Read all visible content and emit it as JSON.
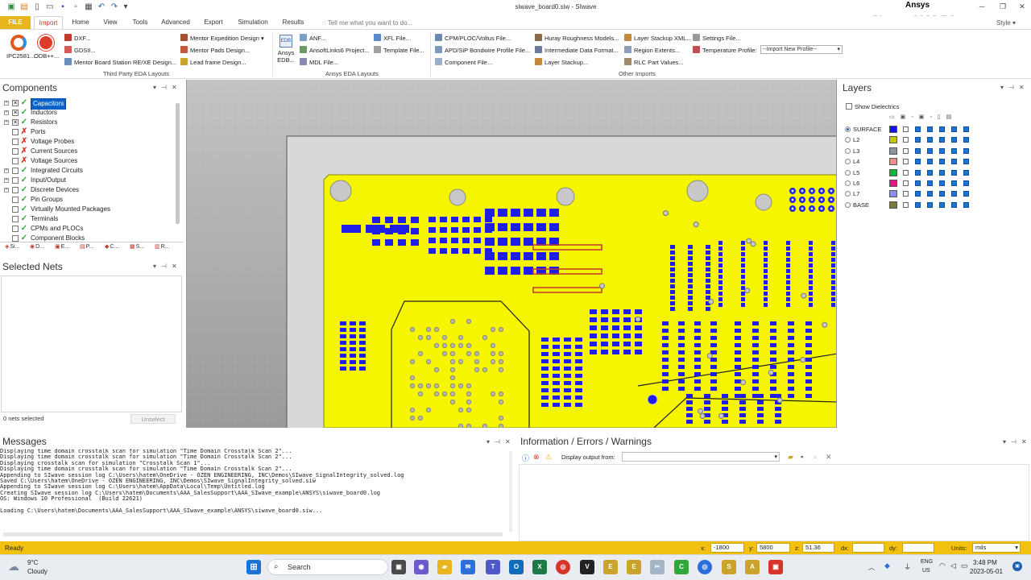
{
  "window": {
    "title": "siwave_board0.siw - SIwave",
    "brand": "Ansys",
    "product": "SIwave 2022 R2"
  },
  "tabs": [
    "FILE",
    "Import",
    "Home",
    "View",
    "Tools",
    "Advanced",
    "Export",
    "Simulation",
    "Results"
  ],
  "tell_me": "Tell me what you want to do...",
  "style_label": "Style",
  "ribbon": {
    "third_party": {
      "big1": "IPC2581...",
      "big2": "ODB++...",
      "small": [
        "DXF...",
        "GDSII...",
        "Mentor Board Station RE/XE Design..."
      ],
      "mentor": [
        "Mentor Expedition Design",
        "Mentor Pads Design...",
        "Lead frame Design..."
      ],
      "label": "Third Party EDA Layouts"
    },
    "ansys": {
      "big": "Ansys EDB...",
      "col1": [
        "ANF...",
        "AnsoftLinks6 Project...",
        "MDL File..."
      ],
      "col2": [
        "XFL File...",
        "Template File..."
      ],
      "label": "Ansys EDA Layouts"
    },
    "other": {
      "col1": [
        "CPM/PLOC/Voltus File...",
        "APD/SiP Bondwire Profile File...",
        "Component File..."
      ],
      "col2": [
        "Huray Roughness Models...",
        "Intermediate Data Format...",
        "Layer Stackup..."
      ],
      "col3": [
        "Layer Stackup XML...",
        "Region Extents...",
        "RLC Part Values..."
      ],
      "col4": [
        "Settings File...",
        "Temperature Profile:"
      ],
      "temp_select": "--Import New Profile--",
      "label": "Other Imports"
    }
  },
  "components": {
    "title": "Components",
    "items": [
      {
        "label": "Capacitors",
        "expand": true,
        "checked": true,
        "status": "ok",
        "selected": true
      },
      {
        "label": "Inductors",
        "expand": true,
        "checked": true,
        "status": "ok"
      },
      {
        "label": "Resistors",
        "expand": true,
        "checked": true,
        "status": "ok"
      },
      {
        "label": "Ports",
        "expand": false,
        "checked": false,
        "status": "x"
      },
      {
        "label": "Voltage Probes",
        "expand": false,
        "checked": false,
        "status": "x"
      },
      {
        "label": "Current Sources",
        "expand": false,
        "checked": false,
        "status": "x"
      },
      {
        "label": "Voltage Sources",
        "expand": false,
        "checked": false,
        "status": "x"
      },
      {
        "label": "Integrated Circuits",
        "expand": true,
        "checked": false,
        "status": "ok"
      },
      {
        "label": "Input/Output",
        "expand": true,
        "checked": false,
        "status": "ok"
      },
      {
        "label": "Discrete Devices",
        "expand": true,
        "checked": false,
        "status": "ok"
      },
      {
        "label": "Pin Groups",
        "expand": false,
        "checked": false,
        "status": "ok"
      },
      {
        "label": "Virtually Mounted Packages",
        "expand": false,
        "checked": false,
        "status": "ok"
      },
      {
        "label": "Terminals",
        "expand": false,
        "checked": false,
        "status": "ok"
      },
      {
        "label": "CPMs and PLOCs",
        "expand": false,
        "checked": false,
        "status": "ok"
      },
      {
        "label": "Component Blocks",
        "expand": false,
        "checked": false,
        "status": "ok"
      }
    ],
    "bottom_tabs": [
      "Si...",
      "D...",
      "E...",
      "P...",
      "C...",
      "S...",
      "R..."
    ]
  },
  "selected_nets": {
    "title": "Selected Nets",
    "count": "0 nets selected",
    "unselect": "Unselect"
  },
  "layers": {
    "title": "Layers",
    "show_dielectrics": "Show Dielectrics",
    "rows": [
      {
        "name": "SURFACE",
        "color": "#1414e6",
        "active": true
      },
      {
        "name": "L2",
        "color": "#c8c800",
        "active": false
      },
      {
        "name": "L3",
        "color": "#8c96a0",
        "active": false
      },
      {
        "name": "L4",
        "color": "#f08c8c",
        "active": false
      },
      {
        "name": "L5",
        "color": "#14b43c",
        "active": false
      },
      {
        "name": "L6",
        "color": "#e6147d",
        "active": false
      },
      {
        "name": "L7",
        "color": "#8c8cf0",
        "active": false
      },
      {
        "name": "BASE",
        "color": "#7a7a3a",
        "active": false
      }
    ]
  },
  "messages": {
    "title": "Messages",
    "lines": [
      "Displaying time domain crosstalk scan for simulation \"Time Domain Crosstalk Scan 2\"...",
      "Displaying time domain crosstalk scan for simulation \"Time Domain Crosstalk Scan 2\"...",
      "Displaying crosstalk scan for simulation \"Crosstalk Scan 1\"...",
      "Displaying time domain crosstalk scan for simulation \"Time Domain Crosstalk Scan 2\"...",
      "Appending to SIwave session log C:\\Users\\hatem\\OneDrive - OZEN ENGINEERING, INC\\Demos\\SIwave_SignalIntegrity_solved.log",
      "Saved C:\\Users\\hatem\\OneDrive - OZEN ENGINEERING, INC\\Demos\\SIwave_SignalIntegrity_solved.siw",
      "Appending to SIwave session log C:\\Users\\hatem\\AppData\\Local\\Temp\\Untitled.log",
      "Creating SIwave session log C:\\Users\\hatem\\Documents\\AAA_SalesSupport\\AAA_SIwave_example\\ANSYS\\siwave_board0.log",
      "OS: Windows 10 Professional  (Build 22621)",
      "",
      "Loading C:\\Users\\hatem\\Documents\\AAA_SalesSupport\\AAA_SIwave_example\\ANSYS\\siwave_board0.siw..."
    ]
  },
  "info": {
    "title": "Information / Errors / Warnings",
    "display_label": "Display output from:",
    "display_value": ""
  },
  "status": {
    "text": "Ready",
    "x_label": "x:",
    "x": "-1800",
    "y_label": "y:",
    "y": "5800",
    "z_label": "z:",
    "z": "51.36",
    "dx_label": "dx:",
    "dx": "",
    "dy_label": "dy:",
    "dy": "",
    "units_label": "Units:",
    "units": "mils"
  },
  "taskbar": {
    "temp": "9°C",
    "weather": "Cloudy",
    "search": "Search",
    "lang1": "ENG",
    "lang2": "US",
    "time": "3:48 PM",
    "date": "2023-05-01"
  },
  "colors": {
    "board": "#f5f500",
    "copper": "#1e1ee6",
    "accent": "#e8b51f",
    "status_bar": "#f2c10f"
  }
}
